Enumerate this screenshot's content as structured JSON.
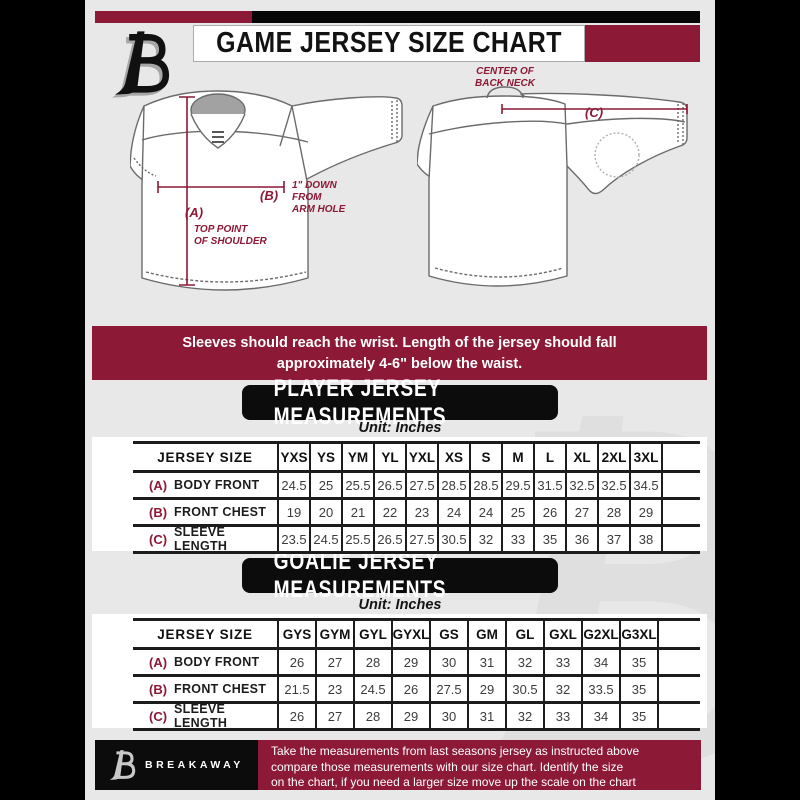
{
  "header": {
    "title": "GAME JERSEY SIZE CHART",
    "brand_logo": "breakaway-b-logo"
  },
  "diagram": {
    "front_view": {
      "label_a": "(A)",
      "label_a_note_lines": [
        "TOP POINT",
        "OF SHOULDER"
      ],
      "label_b": "(B)",
      "label_b_note_lines": [
        "1\" DOWN",
        "FROM",
        "ARM HOLE"
      ]
    },
    "back_view": {
      "label_c": "(C)",
      "label_c_note_lines": [
        "CENTER OF",
        "BACK NECK"
      ]
    }
  },
  "banner": {
    "lines": [
      "Sleeves should reach the wrist. Length of the jersey should fall",
      "approximately 4-6\" below the waist."
    ]
  },
  "player_section": {
    "title": "PLAYER JERSEY MEASUREMENTS",
    "unit": "Unit: Inches"
  },
  "goalie_section": {
    "title": "GOALIE JERSEY MEASUREMENTS",
    "unit": "Unit: Inches"
  },
  "player_table": {
    "header": [
      "JERSEY SIZE",
      "YXS",
      "YS",
      "YM",
      "YL",
      "YXL",
      "XS",
      "S",
      "M",
      "L",
      "XL",
      "2XL",
      "3XL"
    ],
    "rows": [
      {
        "key": "(A)",
        "label": "BODY FRONT",
        "values": [
          "24.5",
          "25",
          "25.5",
          "26.5",
          "27.5",
          "28.5",
          "28.5",
          "29.5",
          "31.5",
          "32.5",
          "32.5",
          "34.5"
        ]
      },
      {
        "key": "(B)",
        "label": "FRONT CHEST",
        "values": [
          "19",
          "20",
          "21",
          "22",
          "23",
          "24",
          "24",
          "25",
          "26",
          "27",
          "28",
          "29"
        ]
      },
      {
        "key": "(C)",
        "label": "SLEEVE LENGTH",
        "values": [
          "23.5",
          "24.5",
          "25.5",
          "26.5",
          "27.5",
          "30.5",
          "32",
          "33",
          "35",
          "36",
          "37",
          "38"
        ]
      }
    ]
  },
  "goalie_table": {
    "header": [
      "JERSEY SIZE",
      "GYS",
      "GYM",
      "GYL",
      "GYXL",
      "GS",
      "GM",
      "GL",
      "GXL",
      "G2XL",
      "G3XL"
    ],
    "rows": [
      {
        "key": "(A)",
        "label": "BODY FRONT",
        "values": [
          "26",
          "27",
          "28",
          "29",
          "30",
          "31",
          "32",
          "33",
          "34",
          "35"
        ]
      },
      {
        "key": "(B)",
        "label": "FRONT CHEST",
        "values": [
          "21.5",
          "23",
          "24.5",
          "26",
          "27.5",
          "29",
          "30.5",
          "32",
          "33.5",
          "35"
        ]
      },
      {
        "key": "(C)",
        "label": "SLEEVE LENGTH",
        "values": [
          "26",
          "27",
          "28",
          "29",
          "30",
          "31",
          "32",
          "33",
          "34",
          "35"
        ]
      }
    ]
  },
  "footer": {
    "brand": "BREAKAWAY",
    "note_lines": [
      "Take the measurements from last seasons jersey as instructed above",
      "compare those measurements with our size chart. Identify the size",
      "on the chart, if you need a larger size move up the scale on the chart"
    ]
  },
  "colors": {
    "maroon": "#8c1936",
    "black": "#0c0c0c",
    "background": "#e8e8e8",
    "table_line": "#1c1c1c",
    "watermark": "#dcdcdc"
  }
}
